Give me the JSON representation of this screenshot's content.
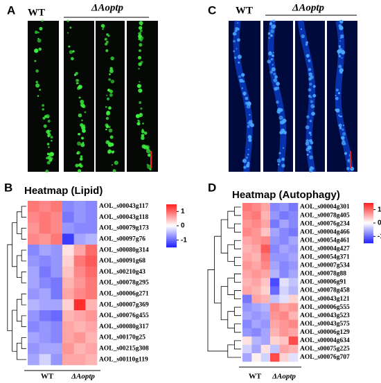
{
  "figure": {
    "panel_A": {
      "label": "A",
      "wt": "WT",
      "mutant": "ΔAoptp"
    },
    "panel_C": {
      "label": "C",
      "wt": "WT",
      "mutant": "ΔAoptp"
    },
    "panel_B": {
      "label": "B"
    },
    "panel_D": {
      "label": "D"
    }
  },
  "chart_data": [
    {
      "type": "heatmap",
      "title": "Heatmap (Lipid)",
      "column_groups": [
        "WT",
        "ΔAoptp"
      ],
      "zlim": [
        -1.5,
        1.5
      ],
      "zticks": [
        1,
        0,
        -1
      ],
      "series": [
        {
          "name": "AOL_s00043g117",
          "values": [
            0.9,
            0.8,
            0.9,
            -0.8,
            -0.7,
            -0.8
          ]
        },
        {
          "name": "AOL_s00043g118",
          "values": [
            0.8,
            0.9,
            0.8,
            -0.9,
            -0.7,
            -0.8
          ]
        },
        {
          "name": "AOL_s00079g173",
          "values": [
            0.7,
            0.9,
            0.8,
            -0.7,
            -0.8,
            -0.8
          ]
        },
        {
          "name": "AOL_s00097g76",
          "values": [
            0.8,
            0.7,
            0.9,
            -1.3,
            -0.6,
            -0.5
          ]
        },
        {
          "name": "AOL_s00080g314",
          "values": [
            -0.8,
            -0.6,
            -0.7,
            0.2,
            0.6,
            1.0
          ]
        },
        {
          "name": "AOL_s00091g68",
          "values": [
            -0.7,
            -0.8,
            -0.7,
            0.3,
            0.9,
            1.1
          ]
        },
        {
          "name": "AOL_s00210g43",
          "values": [
            -0.6,
            -0.9,
            -0.7,
            0.4,
            0.8,
            1.0
          ]
        },
        {
          "name": "AOL_s00078g295",
          "values": [
            -0.6,
            -0.8,
            -0.9,
            0.5,
            0.7,
            0.9
          ]
        },
        {
          "name": "AOL_s00006g271",
          "values": [
            -0.7,
            -0.6,
            -0.9,
            0.6,
            0.8,
            0.9
          ]
        },
        {
          "name": "AOL_s00007g369",
          "values": [
            -0.5,
            -0.6,
            -0.6,
            0.3,
            1.4,
            0.5
          ]
        },
        {
          "name": "AOL_s00076g455",
          "values": [
            -0.7,
            -0.9,
            -1.0,
            0.5,
            0.6,
            0.7
          ]
        },
        {
          "name": "AOL_s00080g317",
          "values": [
            -0.8,
            -0.7,
            -0.8,
            0.6,
            0.5,
            0.6
          ]
        },
        {
          "name": "AOL_s00170g25",
          "values": [
            -0.6,
            -0.7,
            -0.8,
            0.6,
            0.7,
            0.5
          ]
        },
        {
          "name": "AOL_s00215g308",
          "values": [
            -0.7,
            -0.6,
            -0.6,
            0.7,
            0.5,
            0.6
          ]
        },
        {
          "name": "AOL_s00110g119",
          "values": [
            -0.6,
            -0.3,
            -0.7,
            0.6,
            0.6,
            0.5
          ]
        }
      ]
    },
    {
      "type": "heatmap",
      "title": "Heatmap (Autophagy)",
      "column_groups": [
        "WT",
        "ΔAoptp"
      ],
      "zlim": [
        -1.5,
        1.5
      ],
      "zticks": [
        1,
        0,
        -1
      ],
      "series": [
        {
          "name": "AOL_s00004g301",
          "values": [
            0.9,
            0.8,
            0.6,
            -0.8,
            -0.7,
            -0.9
          ]
        },
        {
          "name": "AOL_s00078g405",
          "values": [
            0.8,
            0.9,
            0.5,
            -0.7,
            -0.9,
            -0.8
          ]
        },
        {
          "name": "AOL_s00076g234",
          "values": [
            0.7,
            0.8,
            0.6,
            -0.9,
            -0.6,
            -0.8
          ]
        },
        {
          "name": "AOL_s00004g466",
          "values": [
            0.8,
            0.7,
            0.4,
            -0.6,
            -0.8,
            -0.9
          ]
        },
        {
          "name": "AOL_s00054g461",
          "values": [
            0.6,
            0.7,
            0.8,
            -0.7,
            -0.8,
            -0.6
          ]
        },
        {
          "name": "AOL_s00004g427",
          "values": [
            0.5,
            0.6,
            1.1,
            -0.8,
            -0.6,
            -0.7
          ]
        },
        {
          "name": "AOL_s00054g371",
          "values": [
            0.6,
            0.5,
            0.9,
            -0.7,
            -0.7,
            -0.6
          ]
        },
        {
          "name": "AOL_s00007g534",
          "values": [
            0.7,
            0.6,
            0.8,
            -0.6,
            -0.8,
            -0.7
          ]
        },
        {
          "name": "AOL_s00078g88",
          "values": [
            0.6,
            0.7,
            0.6,
            -0.5,
            -0.8,
            -0.6
          ]
        },
        {
          "name": "AOL_s00006g91",
          "values": [
            0.5,
            0.6,
            0.4,
            -1.2,
            -0.2,
            -0.4
          ]
        },
        {
          "name": "AOL_s00078g458",
          "values": [
            0.6,
            0.5,
            0.3,
            -1.0,
            -0.3,
            -0.5
          ]
        },
        {
          "name": "AOL_s00043g121",
          "values": [
            -0.9,
            0.6,
            0.5,
            -0.4,
            -0.2,
            0.3
          ]
        },
        {
          "name": "AOL_s00006g555",
          "values": [
            -0.7,
            -0.6,
            -0.5,
            0.8,
            0.6,
            0.7
          ]
        },
        {
          "name": "AOL_s00043g523",
          "values": [
            -0.6,
            -0.7,
            -0.6,
            0.7,
            0.8,
            0.5
          ]
        },
        {
          "name": "AOL_s00043g575",
          "values": [
            -0.8,
            -0.6,
            -0.7,
            0.6,
            0.7,
            0.8
          ]
        },
        {
          "name": "AOL_s00006g129",
          "values": [
            -0.7,
            -0.8,
            -0.6,
            0.5,
            0.7,
            0.6
          ]
        },
        {
          "name": "AOL_s00004g634",
          "values": [
            0.2,
            -0.5,
            -0.6,
            0.3,
            0.4,
            1.2
          ]
        },
        {
          "name": "AOL_s00075g225",
          "values": [
            -0.3,
            -0.6,
            0.2,
            -0.4,
            0.6,
            0.5
          ]
        },
        {
          "name": "AOL_s00076g707",
          "values": [
            -0.6,
            0.1,
            -0.3,
            1.2,
            0.3,
            -0.2
          ]
        }
      ]
    }
  ]
}
